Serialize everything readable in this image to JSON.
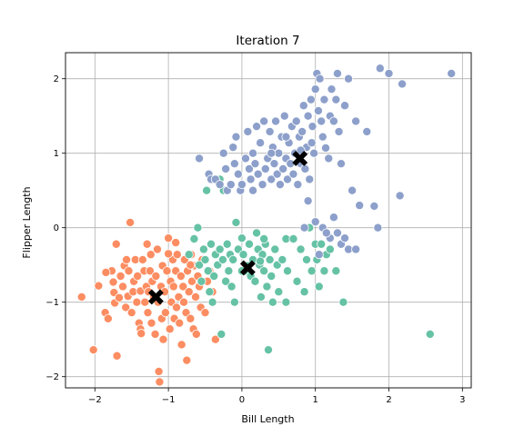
{
  "chart_data": {
    "type": "scatter",
    "title": "Iteration 7",
    "xlabel": "Bill Length",
    "ylabel": "Flipper Length",
    "xlim": [
      -2.4,
      3.12
    ],
    "ylim": [
      -2.15,
      2.35
    ],
    "xticks": [
      -2,
      -1,
      0,
      1,
      2,
      3
    ],
    "yticks": [
      -2,
      -1,
      0,
      1,
      2
    ],
    "grid": true,
    "series": [
      {
        "color": "#fc8d62",
        "points": [
          [
            -2.18,
            -0.93
          ],
          [
            -2.02,
            -1.64
          ],
          [
            -1.95,
            -0.78
          ],
          [
            -1.86,
            -1.14
          ],
          [
            -1.82,
            -1.22
          ],
          [
            -1.77,
            -0.58
          ],
          [
            -1.75,
            -0.73
          ],
          [
            -1.74,
            -0.87
          ],
          [
            -1.73,
            -1.01
          ],
          [
            -1.71,
            -0.22
          ],
          [
            -1.7,
            -1.72
          ],
          [
            -1.67,
            -0.94
          ],
          [
            -1.65,
            -0.65
          ],
          [
            -1.62,
            -0.79
          ],
          [
            -1.6,
            -0.51
          ],
          [
            -1.58,
            -1.07
          ],
          [
            -1.57,
            -0.43
          ],
          [
            -1.55,
            -0.92
          ],
          [
            -1.54,
            -0.58
          ],
          [
            -1.52,
            0.07
          ],
          [
            -1.5,
            -1.14
          ],
          [
            -1.48,
            -0.86
          ],
          [
            -1.47,
            -0.72
          ],
          [
            -1.45,
            -0.43
          ],
          [
            -1.43,
            -1.0
          ],
          [
            -1.42,
            -0.65
          ],
          [
            -1.4,
            -1.28
          ],
          [
            -1.38,
            -0.85
          ],
          [
            -1.38,
            -1.36
          ],
          [
            -1.37,
            -1.42
          ],
          [
            -1.35,
            -0.43
          ],
          [
            -1.33,
            -0.58
          ],
          [
            -1.32,
            -1.0
          ],
          [
            -1.3,
            -0.79
          ],
          [
            -1.29,
            -0.22
          ],
          [
            -1.28,
            -1.14
          ],
          [
            -1.27,
            -0.86
          ],
          [
            -1.25,
            -0.58
          ],
          [
            -1.24,
            -0.36
          ],
          [
            -1.23,
            -1.28
          ],
          [
            -1.22,
            -0.72
          ],
          [
            -1.2,
            -0.93
          ],
          [
            -1.18,
            -1.43
          ],
          [
            -1.17,
            -0.65
          ],
          [
            -1.15,
            -0.29
          ],
          [
            -1.14,
            -1.0
          ],
          [
            -1.13,
            -1.93
          ],
          [
            -1.12,
            -2.07
          ],
          [
            -1.1,
            -0.79
          ],
          [
            -1.09,
            -1.22
          ],
          [
            -1.08,
            -0.51
          ],
          [
            -1.07,
            -1.5
          ],
          [
            -1.05,
            -0.86
          ],
          [
            -1.04,
            -1.14
          ],
          [
            -1.02,
            -0.58
          ],
          [
            -1.0,
            -0.14
          ],
          [
            -0.98,
            -1.36
          ],
          [
            -0.97,
            -0.72
          ],
          [
            -0.96,
            -1.0
          ],
          [
            -0.94,
            -0.43
          ],
          [
            -0.93,
            -0.79
          ],
          [
            -0.92,
            -1.22
          ],
          [
            -0.9,
            -0.58
          ],
          [
            -0.89,
            -1.07
          ],
          [
            -0.88,
            -0.36
          ],
          [
            -0.86,
            -0.93
          ],
          [
            -0.85,
            -1.28
          ],
          [
            -0.83,
            -0.65
          ],
          [
            -0.82,
            -1.57
          ],
          [
            -0.8,
            -0.79
          ],
          [
            -0.79,
            -1.0
          ],
          [
            -0.78,
            -0.43
          ],
          [
            -0.76,
            -1.14
          ],
          [
            -0.75,
            -1.78
          ],
          [
            -0.74,
            -0.58
          ],
          [
            -0.72,
            -0.86
          ],
          [
            -0.7,
            -1.22
          ],
          [
            -0.69,
            -0.36
          ],
          [
            -0.68,
            -0.72
          ],
          [
            -0.66,
            -1.36
          ],
          [
            -0.65,
            -0.51
          ],
          [
            -0.63,
            -0.93
          ],
          [
            -0.62,
            -1.43
          ],
          [
            -0.6,
            -0.65
          ],
          [
            -0.58,
            -0.79
          ],
          [
            -0.56,
            -1.07
          ],
          [
            -0.54,
            -0.43
          ],
          [
            -0.5,
            -1.14
          ],
          [
            -0.47,
            -0.72
          ],
          [
            -0.44,
            -0.58
          ],
          [
            -0.4,
            -0.86
          ],
          [
            -0.36,
            -1.5
          ],
          [
            -1.85,
            -0.6
          ],
          [
            -1.0,
            -0.35
          ],
          [
            -0.7,
            -0.5
          ],
          [
            -0.9,
            -0.2
          ]
        ]
      },
      {
        "color": "#66c2a5",
        "points": [
          [
            -0.72,
            -0.36
          ],
          [
            -0.65,
            -0.15
          ],
          [
            -0.6,
            0.0
          ],
          [
            -0.58,
            -0.5
          ],
          [
            -0.55,
            -0.72
          ],
          [
            -0.52,
            -0.29
          ],
          [
            -0.5,
            -0.43
          ],
          [
            -0.48,
            0.5
          ],
          [
            -0.46,
            -0.58
          ],
          [
            -0.44,
            -0.86
          ],
          [
            -0.42,
            -0.22
          ],
          [
            -0.4,
            -1.0
          ],
          [
            -0.38,
            -0.65
          ],
          [
            -0.36,
            -0.36
          ],
          [
            -0.33,
            -0.5
          ],
          [
            -0.3,
            -0.29
          ],
          [
            -0.28,
            -1.43
          ],
          [
            -0.26,
            -0.43
          ],
          [
            -0.25,
            0.5
          ],
          [
            -0.22,
            -0.72
          ],
          [
            -0.2,
            -0.22
          ],
          [
            -0.18,
            -0.58
          ],
          [
            -0.16,
            -0.36
          ],
          [
            -0.14,
            -0.79
          ],
          [
            -0.12,
            -0.43
          ],
          [
            -0.1,
            -1.0
          ],
          [
            -0.08,
            0.07
          ],
          [
            -0.05,
            -0.29
          ],
          [
            0.0,
            -0.14
          ],
          [
            0.02,
            -0.36
          ],
          [
            0.05,
            -0.58
          ],
          [
            0.08,
            -0.51
          ],
          [
            0.1,
            -0.22
          ],
          [
            0.12,
            -0.65
          ],
          [
            0.15,
            -0.43
          ],
          [
            0.18,
            -0.72
          ],
          [
            0.2,
            -0.07
          ],
          [
            0.22,
            -0.29
          ],
          [
            0.24,
            -0.5
          ],
          [
            0.26,
            -0.93
          ],
          [
            0.28,
            -0.36
          ],
          [
            0.3,
            -0.58
          ],
          [
            0.32,
            -0.22
          ],
          [
            0.34,
            -0.79
          ],
          [
            0.36,
            -1.64
          ],
          [
            0.38,
            -0.43
          ],
          [
            0.4,
            -0.65
          ],
          [
            0.42,
            -1.0
          ],
          [
            0.45,
            -0.29
          ],
          [
            0.48,
            -0.5
          ],
          [
            0.5,
            -0.86
          ],
          [
            0.55,
            -0.43
          ],
          [
            0.6,
            -0.15
          ],
          [
            0.62,
            -0.58
          ],
          [
            0.7,
            -0.15
          ],
          [
            0.75,
            -0.72
          ],
          [
            0.8,
            -0.29
          ],
          [
            0.85,
            -0.86
          ],
          [
            0.88,
            -0.43
          ],
          [
            0.92,
            0.0
          ],
          [
            0.95,
            -0.58
          ],
          [
            1.0,
            -0.22
          ],
          [
            1.02,
            -0.43
          ],
          [
            1.05,
            -0.79
          ],
          [
            1.08,
            -0.22
          ],
          [
            1.12,
            -0.58
          ],
          [
            1.15,
            -0.36
          ],
          [
            1.2,
            -0.29
          ],
          [
            1.28,
            -0.58
          ],
          [
            1.38,
            -1.0
          ],
          [
            2.56,
            -1.43
          ],
          [
            0.3,
            -0.15
          ],
          [
            -0.3,
            0.65
          ],
          [
            0.0,
            -0.58
          ],
          [
            0.6,
            -1.0
          ],
          [
            0.25,
            -0.45
          ]
        ]
      },
      {
        "color": "#8da0cb",
        "points": [
          [
            -0.58,
            0.93
          ],
          [
            -0.45,
            0.72
          ],
          [
            -0.42,
            0.65
          ],
          [
            -0.36,
            0.65
          ],
          [
            -0.3,
            0.58
          ],
          [
            -0.25,
            1.0
          ],
          [
            -0.22,
            0.79
          ],
          [
            -0.2,
            0.5
          ],
          [
            -0.15,
            0.58
          ],
          [
            -0.12,
            1.08
          ],
          [
            -0.1,
            0.86
          ],
          [
            -0.08,
            1.22
          ],
          [
            -0.05,
            0.72
          ],
          [
            -0.02,
            0.5
          ],
          [
            0.0,
            0.58
          ],
          [
            0.05,
            0.93
          ],
          [
            0.08,
            1.29
          ],
          [
            0.1,
            0.79
          ],
          [
            0.12,
            0.65
          ],
          [
            0.15,
            1.0
          ],
          [
            0.18,
            0.86
          ],
          [
            0.2,
            1.36
          ],
          [
            0.22,
            0.72
          ],
          [
            0.25,
            1.14
          ],
          [
            0.28,
            0.58
          ],
          [
            0.3,
            1.43
          ],
          [
            0.32,
            0.79
          ],
          [
            0.35,
            0.93
          ],
          [
            0.38,
            1.29
          ],
          [
            0.4,
            0.65
          ],
          [
            0.42,
            1.08
          ],
          [
            0.44,
            0.86
          ],
          [
            0.46,
            1.43
          ],
          [
            0.48,
            0.72
          ],
          [
            0.5,
            1.0
          ],
          [
            0.52,
            0.58
          ],
          [
            0.54,
            1.22
          ],
          [
            0.56,
            0.79
          ],
          [
            0.58,
            1.5
          ],
          [
            0.6,
            0.93
          ],
          [
            0.62,
            0.65
          ],
          [
            0.64,
            1.14
          ],
          [
            0.66,
            0.86
          ],
          [
            0.68,
            1.36
          ],
          [
            0.7,
            0.72
          ],
          [
            0.72,
            1.0
          ],
          [
            0.74,
            1.43
          ],
          [
            0.76,
            0.58
          ],
          [
            0.78,
            1.22
          ],
          [
            0.8,
            0.86
          ],
          [
            0.82,
            1.29
          ],
          [
            0.84,
            1.64
          ],
          [
            0.86,
            0.79
          ],
          [
            0.88,
            1.08
          ],
          [
            0.9,
            1.5
          ],
          [
            0.92,
            0.65
          ],
          [
            0.94,
            1.72
          ],
          [
            0.96,
            1.36
          ],
          [
            0.98,
            1.0
          ],
          [
            1.0,
            1.86
          ],
          [
            1.02,
            2.07
          ],
          [
            1.04,
            1.57
          ],
          [
            1.06,
            2.0
          ],
          [
            1.08,
            1.43
          ],
          [
            1.1,
            1.22
          ],
          [
            1.12,
            1.72
          ],
          [
            1.14,
            1.07
          ],
          [
            1.18,
            0.93
          ],
          [
            1.2,
            1.5
          ],
          [
            1.22,
            1.86
          ],
          [
            1.25,
            1.43
          ],
          [
            1.28,
            1.72
          ],
          [
            1.3,
            2.07
          ],
          [
            1.32,
            1.29
          ],
          [
            1.35,
            0.86
          ],
          [
            1.4,
            1.64
          ],
          [
            1.45,
            2.0
          ],
          [
            1.5,
            0.5
          ],
          [
            1.55,
            1.43
          ],
          [
            1.6,
            0.3
          ],
          [
            1.7,
            1.29
          ],
          [
            1.8,
            0.29
          ],
          [
            1.85,
            0.0
          ],
          [
            1.88,
            2.14
          ],
          [
            2.0,
            2.07
          ],
          [
            2.15,
            0.43
          ],
          [
            2.18,
            1.93
          ],
          [
            2.85,
            2.07
          ],
          [
            0.85,
            0.0
          ],
          [
            1.0,
            0.08
          ],
          [
            1.1,
            0.0
          ],
          [
            1.2,
            -0.14
          ],
          [
            1.3,
            -0.07
          ],
          [
            1.45,
            -0.29
          ],
          [
            1.55,
            -0.29
          ],
          [
            1.35,
            -0.22
          ],
          [
            1.25,
            0.14
          ],
          [
            0.95,
            1.14
          ],
          [
            0.9,
            0.36
          ],
          [
            1.05,
            -0.36
          ],
          [
            1.15,
            -0.07
          ],
          [
            1.4,
            -0.14
          ],
          [
            0.8,
            1.04
          ],
          [
            0.6,
            1.22
          ],
          [
            0.4,
            1.0
          ],
          [
            0.15,
            0.5
          ]
        ]
      }
    ],
    "centroids": {
      "color": "#000000",
      "points": [
        [
          -1.17,
          -0.93
        ],
        [
          0.08,
          -0.54
        ],
        [
          0.79,
          0.93
        ]
      ]
    }
  }
}
